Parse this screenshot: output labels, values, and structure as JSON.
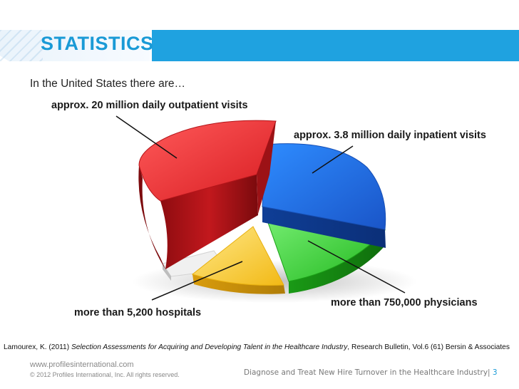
{
  "header": {
    "title": "STATISTICS"
  },
  "intro": "In the United States there are…",
  "slices": [
    {
      "label": "approx. 20 million daily outpatient visits",
      "color": "#e3262b"
    },
    {
      "label": "approx. 3.8 million daily inpatient visits",
      "color": "#1f6fe0"
    },
    {
      "label": "more than 750,000 physicians",
      "color": "#2fcf2a"
    },
    {
      "label": "more than 5,200 hospitals",
      "color": "#f5c21f"
    },
    {
      "label": "",
      "color": "#e6e6e6"
    }
  ],
  "citation": {
    "prefix": "Lamourex, K. (2011) ",
    "title": "Selection Assessments for Acquiring and Developing Talent in the Healthcare Industry",
    "suffix": ", Research Bulletin, Vol.6 (61) Bersin & Associates"
  },
  "footer": {
    "url": "www.profilesinternational.com",
    "copyright": "© 2012 Profiles International, Inc. All rights reserved.",
    "tagline": "Diagnose and Treat New Hire Turnover in the Healthcare Industry|",
    "page": " 3"
  }
}
